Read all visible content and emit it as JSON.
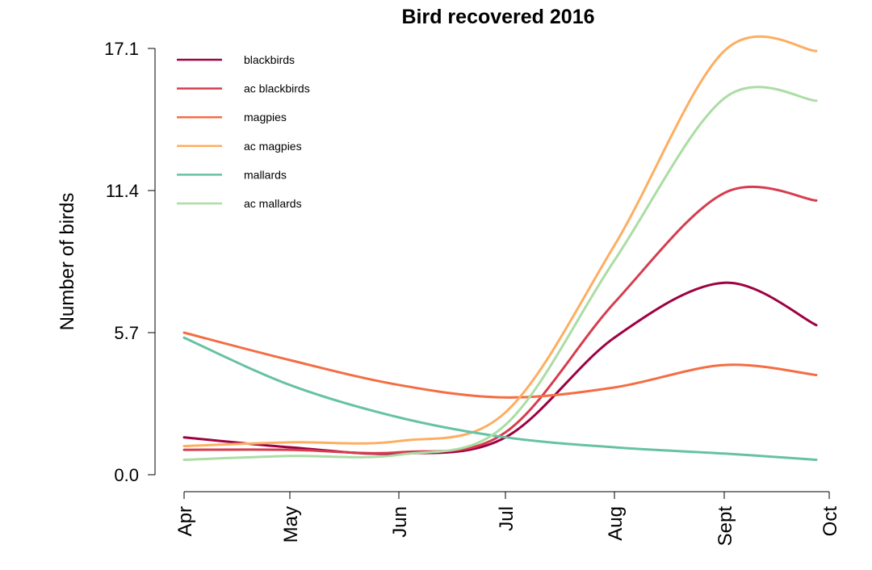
{
  "chart_data": {
    "type": "line",
    "title": "Bird recovered 2016",
    "xlabel": "",
    "ylabel": "Number of birds",
    "ylim": [
      0,
      17.1
    ],
    "yticks": [
      "0.0",
      "5.7",
      "11.4",
      "17.1"
    ],
    "ytick_values": [
      0,
      5.7,
      11.4,
      17.1
    ],
    "categories": [
      "Apr",
      "May",
      "Jun",
      "Jul",
      "Aug",
      "Sept",
      "Oct"
    ],
    "grid": false,
    "legend_position": "top-left",
    "series": [
      {
        "name": "blackbirds",
        "color": "#9e0142",
        "values": [
          1.5,
          1.1,
          0.85,
          1.5,
          5.5,
          7.7,
          6.0
        ]
      },
      {
        "name": "ac blackbirds",
        "color": "#d53e4f",
        "values": [
          1.0,
          1.0,
          0.9,
          1.7,
          6.9,
          11.3,
          11.0
        ]
      },
      {
        "name": "magpies",
        "color": "#f46d43",
        "values": [
          5.7,
          4.6,
          3.6,
          3.1,
          3.5,
          4.4,
          4.0
        ]
      },
      {
        "name": "ac magpies",
        "color": "#fdae61",
        "values": [
          1.15,
          1.3,
          1.35,
          2.5,
          9.2,
          17.0,
          17.0
        ]
      },
      {
        "name": "mallards",
        "color": "#66c2a5",
        "values": [
          5.5,
          3.6,
          2.3,
          1.5,
          1.1,
          0.85,
          0.6
        ]
      },
      {
        "name": "ac mallards",
        "color": "#abdda4",
        "values": [
          0.6,
          0.75,
          0.8,
          2.0,
          8.6,
          15.1,
          15.0
        ]
      }
    ]
  }
}
